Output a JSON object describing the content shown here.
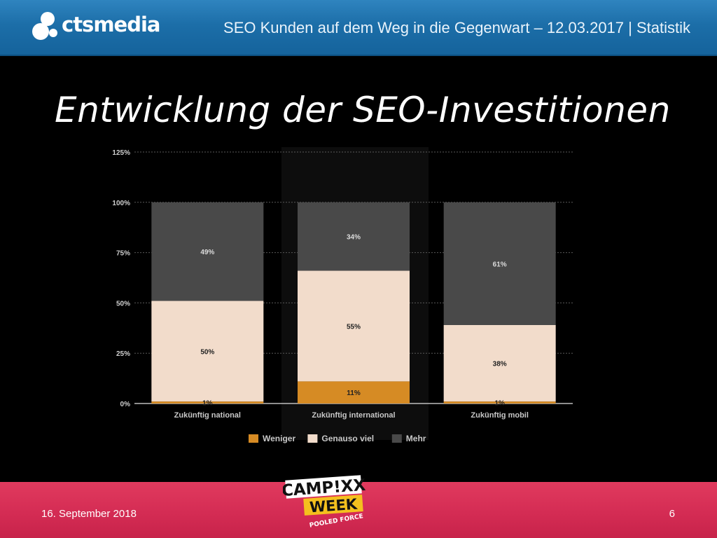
{
  "header": {
    "logo_text": "ctsmedia",
    "title": "SEO Kunden auf dem Weg in die Gegenwart – 12.03.2017 | Statistik"
  },
  "slide": {
    "title": "Entwicklung der SEO-Investitionen"
  },
  "footer": {
    "date": "16. September 2018",
    "page_number": "6",
    "event_logo": {
      "line1": "CAMP!XX",
      "line2": "WEEK",
      "line3": "POOLED FORCE"
    }
  },
  "colors": {
    "header_blue": "#1c6ea8",
    "footer_red": "#d32b53",
    "weniger": "#d68b24",
    "genauso_viel": "#f2dccb",
    "mehr": "#494949"
  },
  "chart_data": {
    "type": "bar",
    "stacked": true,
    "categories": [
      "Zukünftig national",
      "Zukünftig international",
      "Zukünftig mobil"
    ],
    "series": [
      {
        "name": "Weniger",
        "color": "#d68b24",
        "values": [
          1,
          11,
          1
        ],
        "labels": [
          "1%",
          "11%",
          "1%"
        ]
      },
      {
        "name": "Genauso viel",
        "color": "#f2dccb",
        "values": [
          50,
          55,
          38
        ],
        "labels": [
          "50%",
          "55%",
          "38%"
        ]
      },
      {
        "name": "Mehr",
        "color": "#494949",
        "values": [
          49,
          34,
          61
        ],
        "labels": [
          "49%",
          "34%",
          "61%"
        ]
      }
    ],
    "yticks": [
      "0%",
      "25%",
      "50%",
      "75%",
      "100%",
      "125%"
    ],
    "ylim": [
      0,
      125
    ],
    "grid": true,
    "legend_position": "bottom-center",
    "title": "",
    "xlabel": "",
    "ylabel": ""
  }
}
